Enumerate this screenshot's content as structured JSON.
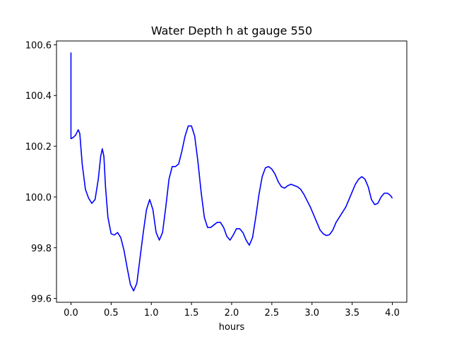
{
  "chart_data": {
    "type": "line",
    "title": "Water Depth h at gauge 550",
    "xlabel": "hours",
    "ylabel": "",
    "xlim": [
      -0.18,
      4.18
    ],
    "ylim": [
      99.585,
      100.615
    ],
    "xticks": [
      0.0,
      0.5,
      1.0,
      1.5,
      2.0,
      2.5,
      3.0,
      3.5,
      4.0
    ],
    "xtick_labels": [
      "0.0",
      "0.5",
      "1.0",
      "1.5",
      "2.0",
      "2.5",
      "3.0",
      "3.5",
      "4.0"
    ],
    "yticks": [
      99.6,
      99.8,
      100.0,
      100.2,
      100.4,
      100.6
    ],
    "ytick_labels": [
      "99.6",
      "99.8",
      "100.0",
      "100.2",
      "100.4",
      "100.6"
    ],
    "grid": false,
    "series": [
      {
        "color": "#0000ff",
        "x": [
          0.0,
          0.0,
          0.0,
          0.03,
          0.06,
          0.09,
          0.11,
          0.14,
          0.18,
          0.22,
          0.26,
          0.3,
          0.34,
          0.37,
          0.39,
          0.41,
          0.43,
          0.46,
          0.5,
          0.54,
          0.58,
          0.62,
          0.66,
          0.7,
          0.74,
          0.78,
          0.82,
          0.86,
          0.9,
          0.94,
          0.98,
          1.02,
          1.06,
          1.1,
          1.14,
          1.18,
          1.22,
          1.26,
          1.3,
          1.34,
          1.38,
          1.42,
          1.46,
          1.5,
          1.54,
          1.58,
          1.62,
          1.66,
          1.7,
          1.74,
          1.78,
          1.82,
          1.86,
          1.9,
          1.94,
          1.98,
          2.02,
          2.06,
          2.1,
          2.14,
          2.18,
          2.22,
          2.26,
          2.3,
          2.34,
          2.38,
          2.42,
          2.46,
          2.5,
          2.54,
          2.58,
          2.62,
          2.66,
          2.7,
          2.74,
          2.78,
          2.82,
          2.86,
          2.9,
          2.94,
          2.98,
          3.02,
          3.06,
          3.1,
          3.14,
          3.18,
          3.22,
          3.26,
          3.3,
          3.34,
          3.38,
          3.42,
          3.46,
          3.5,
          3.54,
          3.58,
          3.62,
          3.66,
          3.7,
          3.74,
          3.78,
          3.82,
          3.86,
          3.9,
          3.94,
          3.98,
          4.0
        ],
        "y": [
          100.23,
          100.568,
          100.23,
          100.235,
          100.245,
          100.265,
          100.25,
          100.13,
          100.03,
          99.995,
          99.975,
          99.99,
          100.07,
          100.16,
          100.19,
          100.16,
          100.04,
          99.92,
          99.855,
          99.85,
          99.86,
          99.84,
          99.79,
          99.72,
          99.655,
          99.63,
          99.66,
          99.76,
          99.86,
          99.95,
          99.99,
          99.95,
          99.86,
          99.83,
          99.86,
          99.96,
          100.07,
          100.12,
          100.12,
          100.13,
          100.18,
          100.24,
          100.28,
          100.28,
          100.24,
          100.14,
          100.02,
          99.92,
          99.88,
          99.88,
          99.89,
          99.9,
          99.9,
          99.88,
          99.845,
          99.83,
          99.85,
          99.875,
          99.875,
          99.86,
          99.83,
          99.81,
          99.84,
          99.92,
          100.01,
          100.08,
          100.115,
          100.12,
          100.11,
          100.09,
          100.06,
          100.04,
          100.035,
          100.045,
          100.05,
          100.045,
          100.04,
          100.03,
          100.01,
          99.985,
          99.96,
          99.93,
          99.9,
          99.87,
          99.855,
          99.848,
          99.852,
          99.87,
          99.9,
          99.92,
          99.94,
          99.96,
          99.99,
          100.02,
          100.05,
          100.07,
          100.08,
          100.07,
          100.04,
          99.99,
          99.97,
          99.975,
          100.0,
          100.015,
          100.015,
          100.005,
          99.995
        ]
      }
    ]
  }
}
